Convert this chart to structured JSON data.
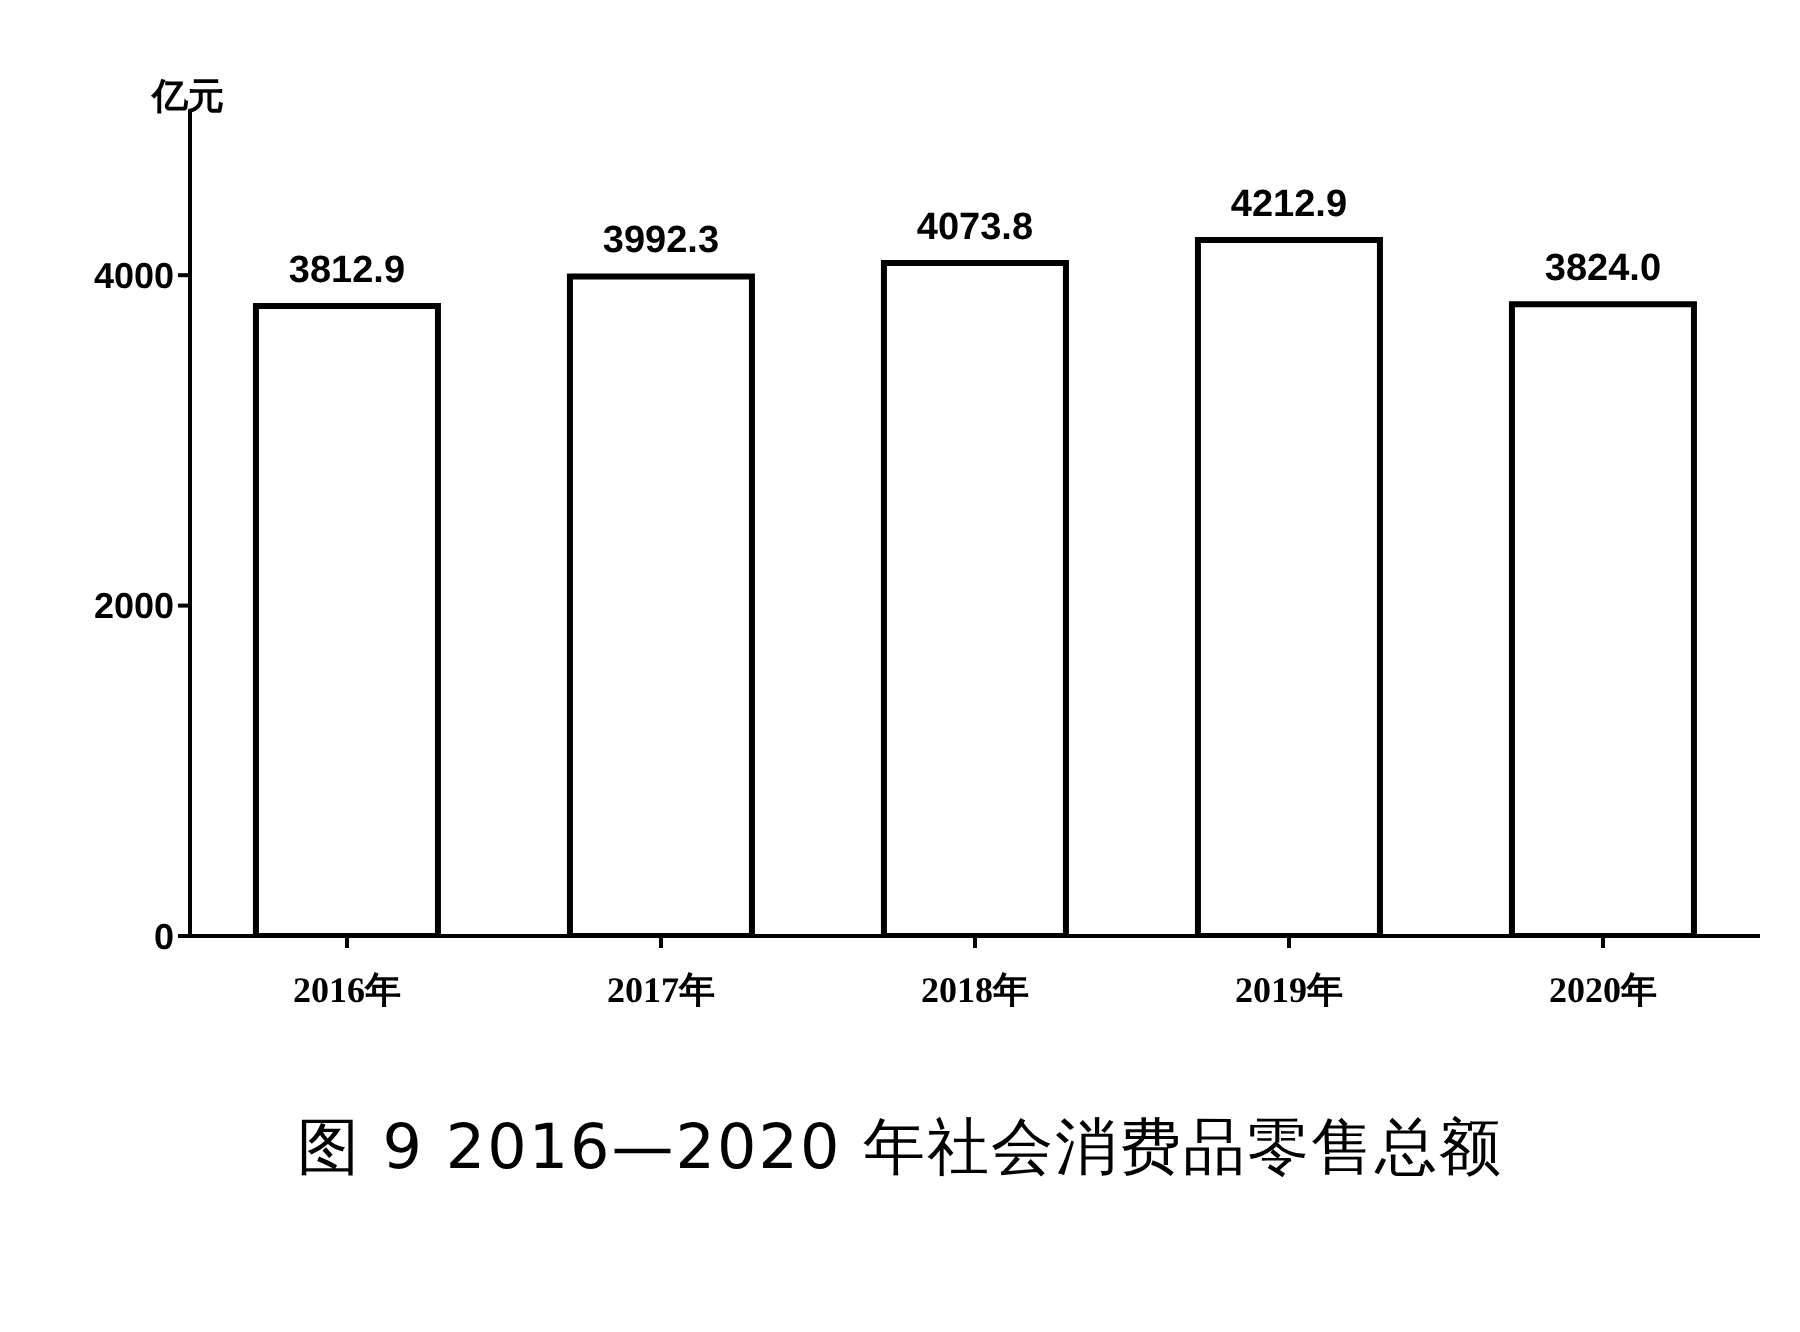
{
  "chart_data": {
    "type": "bar",
    "title": "图 9 2016—2020 年社会消费品零售总额",
    "ylabel": "亿元",
    "categories": [
      "2016年",
      "2017年",
      "2018年",
      "2019年",
      "2020年"
    ],
    "values": [
      3812.9,
      3992.3,
      4073.8,
      4212.9,
      3824.0
    ],
    "value_labels": [
      "3812.9",
      "3992.3",
      "4073.8",
      "4212.9",
      "3824.0"
    ],
    "color": "#ffffff",
    "ylim": [
      0,
      5000
    ],
    "yticks": [
      0,
      2000,
      4000
    ]
  }
}
